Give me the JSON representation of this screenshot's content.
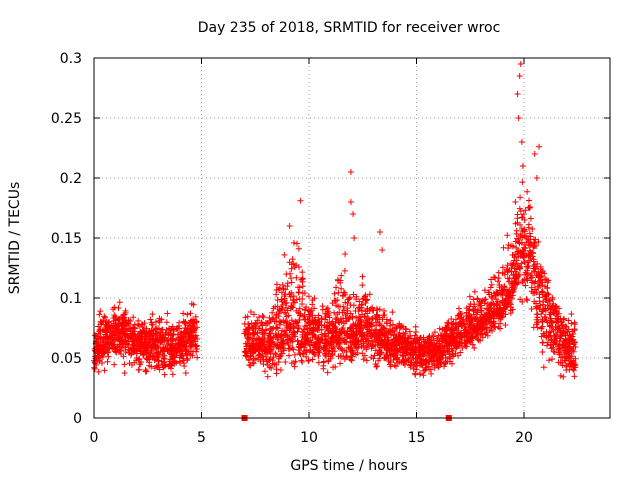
{
  "chart_data": {
    "type": "scatter",
    "title": "Day 235 of 2018, SRMTID for receiver wroc",
    "xlabel": "GPS time / hours",
    "ylabel": "SRMTID / TECUs",
    "xlim": [
      0,
      24
    ],
    "ylim": [
      0,
      0.3
    ],
    "x_ticks": [
      0,
      5,
      10,
      15,
      20
    ],
    "y_ticks": [
      0,
      0.05,
      0.1,
      0.15,
      0.2,
      0.25,
      0.3
    ],
    "x_tick_labels": [
      "0",
      "5",
      "10",
      "15",
      "20"
    ],
    "y_tick_labels": [
      "0",
      "0.05",
      "0.1",
      "0.15",
      "0.2",
      "0.25",
      "0.3"
    ],
    "grid": true,
    "marker": "+",
    "color": "#ff0000",
    "series": [
      {
        "name": "SRMTID",
        "segments": [
          {
            "x": [
              0.0,
              0.2,
              0.4,
              0.6,
              0.8,
              1.0,
              1.2,
              1.4,
              1.6,
              1.8,
              2.0,
              2.2,
              2.4,
              2.6,
              2.8,
              3.0,
              3.2,
              3.4,
              3.6,
              3.8,
              4.0,
              4.2,
              4.4,
              4.6,
              4.8
            ],
            "mean": [
              0.048,
              0.058,
              0.064,
              0.068,
              0.07,
              0.072,
              0.071,
              0.07,
              0.068,
              0.066,
              0.065,
              0.064,
              0.063,
              0.063,
              0.062,
              0.062,
              0.063,
              0.062,
              0.061,
              0.062,
              0.063,
              0.064,
              0.066,
              0.068,
              0.067
            ],
            "low": [
              0.03,
              0.032,
              0.035,
              0.036,
              0.037,
              0.035,
              0.034,
              0.033,
              0.033,
              0.033,
              0.033,
              0.032,
              0.03,
              0.031,
              0.03,
              0.031,
              0.03,
              0.029,
              0.03,
              0.03,
              0.03,
              0.031,
              0.032,
              0.034,
              0.033
            ],
            "high": [
              0.072,
              0.09,
              0.102,
              0.106,
              0.106,
              0.107,
              0.102,
              0.098,
              0.094,
              0.092,
              0.094,
              0.09,
              0.091,
              0.093,
              0.091,
              0.092,
              0.09,
              0.09,
              0.088,
              0.091,
              0.092,
              0.095,
              0.097,
              0.099,
              0.097
            ]
          },
          {
            "x": [
              7.0,
              7.2,
              7.4,
              7.6,
              7.8,
              8.0,
              8.2,
              8.4,
              8.6,
              8.8,
              9.0,
              9.2,
              9.4,
              9.6,
              9.8,
              10.0,
              10.2,
              10.4,
              10.6,
              10.8,
              11.0,
              11.2,
              11.4,
              11.6,
              11.8,
              12.0,
              12.2,
              12.4,
              12.6,
              12.8,
              13.0,
              13.2,
              13.4,
              13.6,
              13.8,
              14.0,
              14.2,
              14.4,
              14.6,
              14.8,
              15.0,
              15.2,
              15.4,
              15.6,
              15.8,
              16.0,
              16.2,
              16.4,
              16.6,
              16.8,
              17.0,
              17.2,
              17.4,
              17.6,
              17.8,
              18.0,
              18.2,
              18.4,
              18.6,
              18.8,
              19.0,
              19.2,
              19.4,
              19.6,
              19.8,
              20.0,
              20.2,
              20.4,
              20.6,
              20.8,
              21.0,
              21.2,
              21.4,
              21.6,
              21.8,
              22.0,
              22.2,
              22.4
            ],
            "mean": [
              0.06,
              0.062,
              0.061,
              0.06,
              0.059,
              0.062,
              0.065,
              0.068,
              0.07,
              0.072,
              0.078,
              0.08,
              0.077,
              0.074,
              0.072,
              0.07,
              0.068,
              0.068,
              0.069,
              0.067,
              0.068,
              0.07,
              0.075,
              0.08,
              0.072,
              0.068,
              0.072,
              0.075,
              0.078,
              0.074,
              0.07,
              0.068,
              0.066,
              0.064,
              0.062,
              0.062,
              0.061,
              0.06,
              0.058,
              0.057,
              0.056,
              0.055,
              0.055,
              0.054,
              0.055,
              0.056,
              0.058,
              0.062,
              0.065,
              0.068,
              0.07,
              0.072,
              0.074,
              0.076,
              0.078,
              0.08,
              0.082,
              0.085,
              0.088,
              0.09,
              0.095,
              0.102,
              0.11,
              0.125,
              0.135,
              0.14,
              0.135,
              0.128,
              0.12,
              0.105,
              0.095,
              0.09,
              0.085,
              0.075,
              0.065,
              0.058,
              0.052,
              0.05
            ],
            "low": [
              0.04,
              0.038,
              0.036,
              0.035,
              0.036,
              0.032,
              0.03,
              0.028,
              0.025,
              0.024,
              0.028,
              0.03,
              0.035,
              0.036,
              0.035,
              0.034,
              0.034,
              0.033,
              0.035,
              0.036,
              0.035,
              0.034,
              0.033,
              0.034,
              0.035,
              0.034,
              0.035,
              0.036,
              0.036,
              0.036,
              0.037,
              0.036,
              0.035,
              0.035,
              0.034,
              0.034,
              0.033,
              0.032,
              0.031,
              0.03,
              0.03,
              0.03,
              0.03,
              0.032,
              0.032,
              0.034,
              0.036,
              0.04,
              0.04,
              0.042,
              0.045,
              0.048,
              0.05,
              0.052,
              0.055,
              0.058,
              0.06,
              0.062,
              0.065,
              0.068,
              0.072,
              0.076,
              0.08,
              0.085,
              0.085,
              0.08,
              0.07,
              0.06,
              0.045,
              0.036,
              0.033,
              0.032,
              0.03,
              0.028,
              0.022,
              0.022,
              0.024,
              0.03
            ],
            "high": [
              0.095,
              0.1,
              0.095,
              0.092,
              0.09,
              0.095,
              0.105,
              0.12,
              0.135,
              0.15,
              0.155,
              0.165,
              0.17,
              0.165,
              0.14,
              0.125,
              0.118,
              0.11,
              0.115,
              0.112,
              0.11,
              0.115,
              0.13,
              0.155,
              0.13,
              0.12,
              0.125,
              0.13,
              0.135,
              0.125,
              0.11,
              0.105,
              0.1,
              0.096,
              0.092,
              0.09,
              0.088,
              0.085,
              0.082,
              0.08,
              0.08,
              0.078,
              0.076,
              0.075,
              0.078,
              0.08,
              0.085,
              0.09,
              0.092,
              0.095,
              0.1,
              0.105,
              0.108,
              0.11,
              0.112,
              0.115,
              0.12,
              0.125,
              0.13,
              0.14,
              0.15,
              0.165,
              0.18,
              0.2,
              0.215,
              0.21,
              0.2,
              0.185,
              0.165,
              0.145,
              0.13,
              0.12,
              0.11,
              0.1,
              0.095,
              0.09,
              0.095,
              0.105
            ]
          }
        ],
        "extreme_points": [
          {
            "x": 9.1,
            "y": 0.16
          },
          {
            "x": 9.6,
            "y": 0.181
          },
          {
            "x": 11.95,
            "y": 0.205
          },
          {
            "x": 11.95,
            "y": 0.18
          },
          {
            "x": 12.05,
            "y": 0.17
          },
          {
            "x": 12.1,
            "y": 0.15
          },
          {
            "x": 13.3,
            "y": 0.155
          },
          {
            "x": 13.4,
            "y": 0.14
          },
          {
            "x": 19.6,
            "y": 0.18
          },
          {
            "x": 19.7,
            "y": 0.27
          },
          {
            "x": 19.75,
            "y": 0.25
          },
          {
            "x": 19.8,
            "y": 0.285
          },
          {
            "x": 19.85,
            "y": 0.295
          },
          {
            "x": 19.9,
            "y": 0.23
          },
          {
            "x": 19.95,
            "y": 0.21
          },
          {
            "x": 20.5,
            "y": 0.22
          },
          {
            "x": 20.7,
            "y": 0.226
          },
          {
            "x": 20.6,
            "y": 0.2
          }
        ]
      }
    ],
    "axis_markers": [
      {
        "x": 7.0,
        "y": 0
      },
      {
        "x": 16.5,
        "y": 0
      }
    ]
  }
}
